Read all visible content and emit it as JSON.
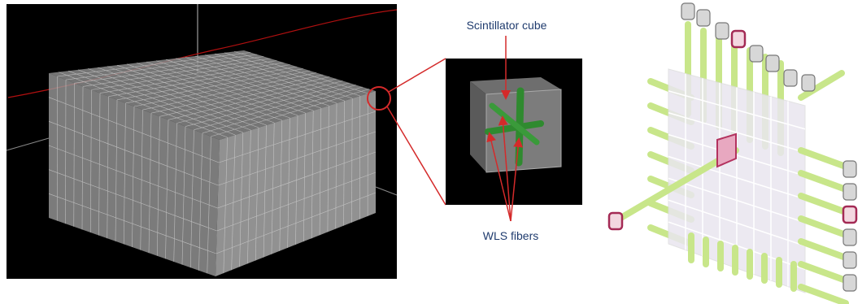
{
  "labels": {
    "cube": "Scintillator  cube",
    "fibers": "WLS fibers"
  }
}
